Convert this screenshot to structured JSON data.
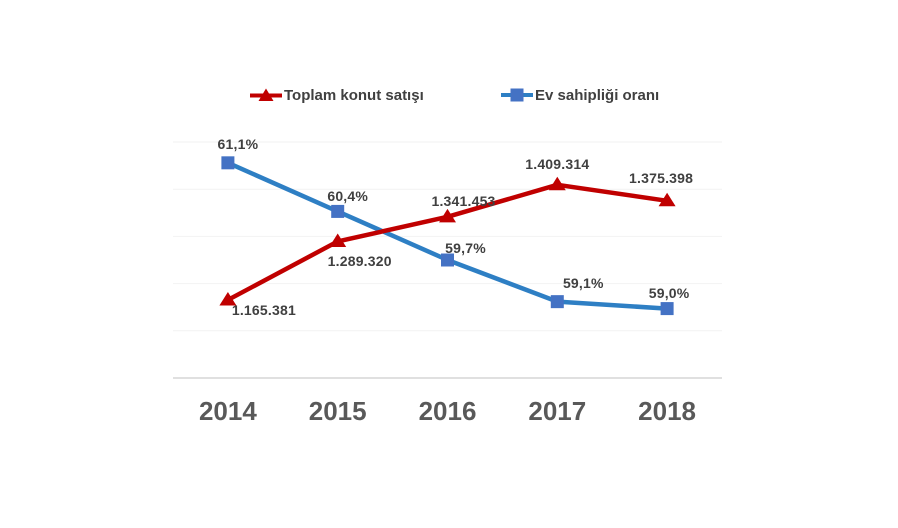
{
  "chart_data": {
    "type": "line",
    "categories": [
      "2014",
      "2015",
      "2016",
      "2017",
      "2018"
    ],
    "series": [
      {
        "name": "Toplam konut satışı",
        "values": [
          1165381,
          1289320,
          1341453,
          1409314,
          1375398
        ],
        "data_labels": [
          "1.165.381",
          "1.289.320",
          "1.341.453",
          "1.409.314",
          "1.375.398"
        ],
        "color": "#C00000",
        "marker_color": "#C00000",
        "marker": "triangle",
        "axis_range": [
          1000000,
          1500000
        ]
      },
      {
        "name": "Ev sahipliği oranı",
        "values": [
          61.1,
          60.4,
          59.7,
          59.1,
          59.0
        ],
        "data_labels": [
          "61,1%",
          "60,4%",
          "59,7%",
          "59,1%",
          "59,0%"
        ],
        "color": "#2E7FC4",
        "marker_color": "#4472C4",
        "marker": "square",
        "axis_range": [
          58.0,
          61.4
        ]
      }
    ],
    "title": "",
    "legend_position": "top",
    "grid": true,
    "gridline_count": 6,
    "colors": {
      "data_label": "#404040",
      "axis_label": "#595959",
      "legend_label": "#404040",
      "gridline": "#F2F2F2",
      "axis_line": "#E0E0E0",
      "background": "#FFFFFF"
    }
  }
}
